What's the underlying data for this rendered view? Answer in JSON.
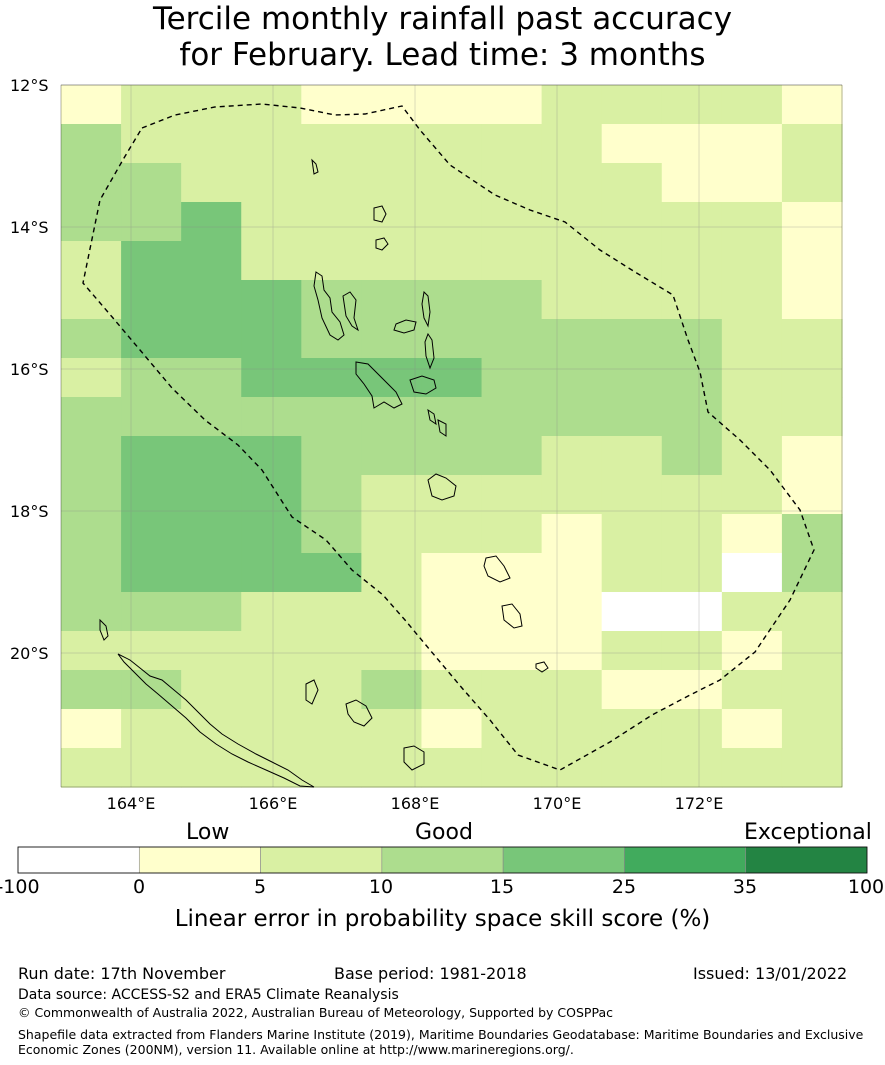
{
  "title": {
    "line1": "Tercile monthly rainfall past accuracy",
    "line2": "for February. Lead time: 3 months"
  },
  "map": {
    "lat_labels": [
      "12°S",
      "14°S",
      "16°S",
      "18°S",
      "20°S"
    ],
    "lon_labels": [
      "164°E",
      "166°E",
      "168°E",
      "170°E",
      "172°E"
    ],
    "region": "Vanuatu EEZ",
    "grid_columns": 13,
    "grid_rows": 18,
    "grid_class_codes": [
      "1222111122221",
      "3222222221112",
      "3322222222112",
      "3342222222221",
      "2442222222221",
      "2444333322221",
      "3444333333322",
      "2334444333322",
      "3333333333322",
      "3444333322321",
      "3444322222221",
      "3444322212213",
      "3444421112203",
      "3332221110022",
      "2222221112212",
      "3322232221122",
      "1222221222212",
      "2222222222222"
    ]
  },
  "colorbar": {
    "category_labels": [
      "Low",
      "Good",
      "Exceptional"
    ],
    "ticks": [
      "-100",
      "0",
      "5",
      "10",
      "15",
      "25",
      "35",
      "100"
    ],
    "colors": [
      "#ffffff",
      "#ffffcc",
      "#d9f0a3",
      "#addd8e",
      "#78c679",
      "#41ab5d",
      "#238443"
    ],
    "label": "Linear error in probability space skill score (%)"
  },
  "footer": {
    "run_date": "Run date: 17th November",
    "base_period": "Base period: 1981-2018",
    "issued": "Issued: 13/01/2022",
    "data_source": "Data source: ACCESS-S2 and ERA5 Climate Reanalysis",
    "copyright": "© Commonwealth of Australia 2022, Australian Bureau of Meteorology, Supported by COSPPac",
    "shapefile_line1": "Shapefile data extracted from Flanders Marine Institute (2019), Maritime Boundaries Geodatabase: Maritime Boundaries and Exclusive",
    "shapefile_line2": "Economic Zones (200NM), version 11. Available online at http://www.marineregions.org/."
  }
}
